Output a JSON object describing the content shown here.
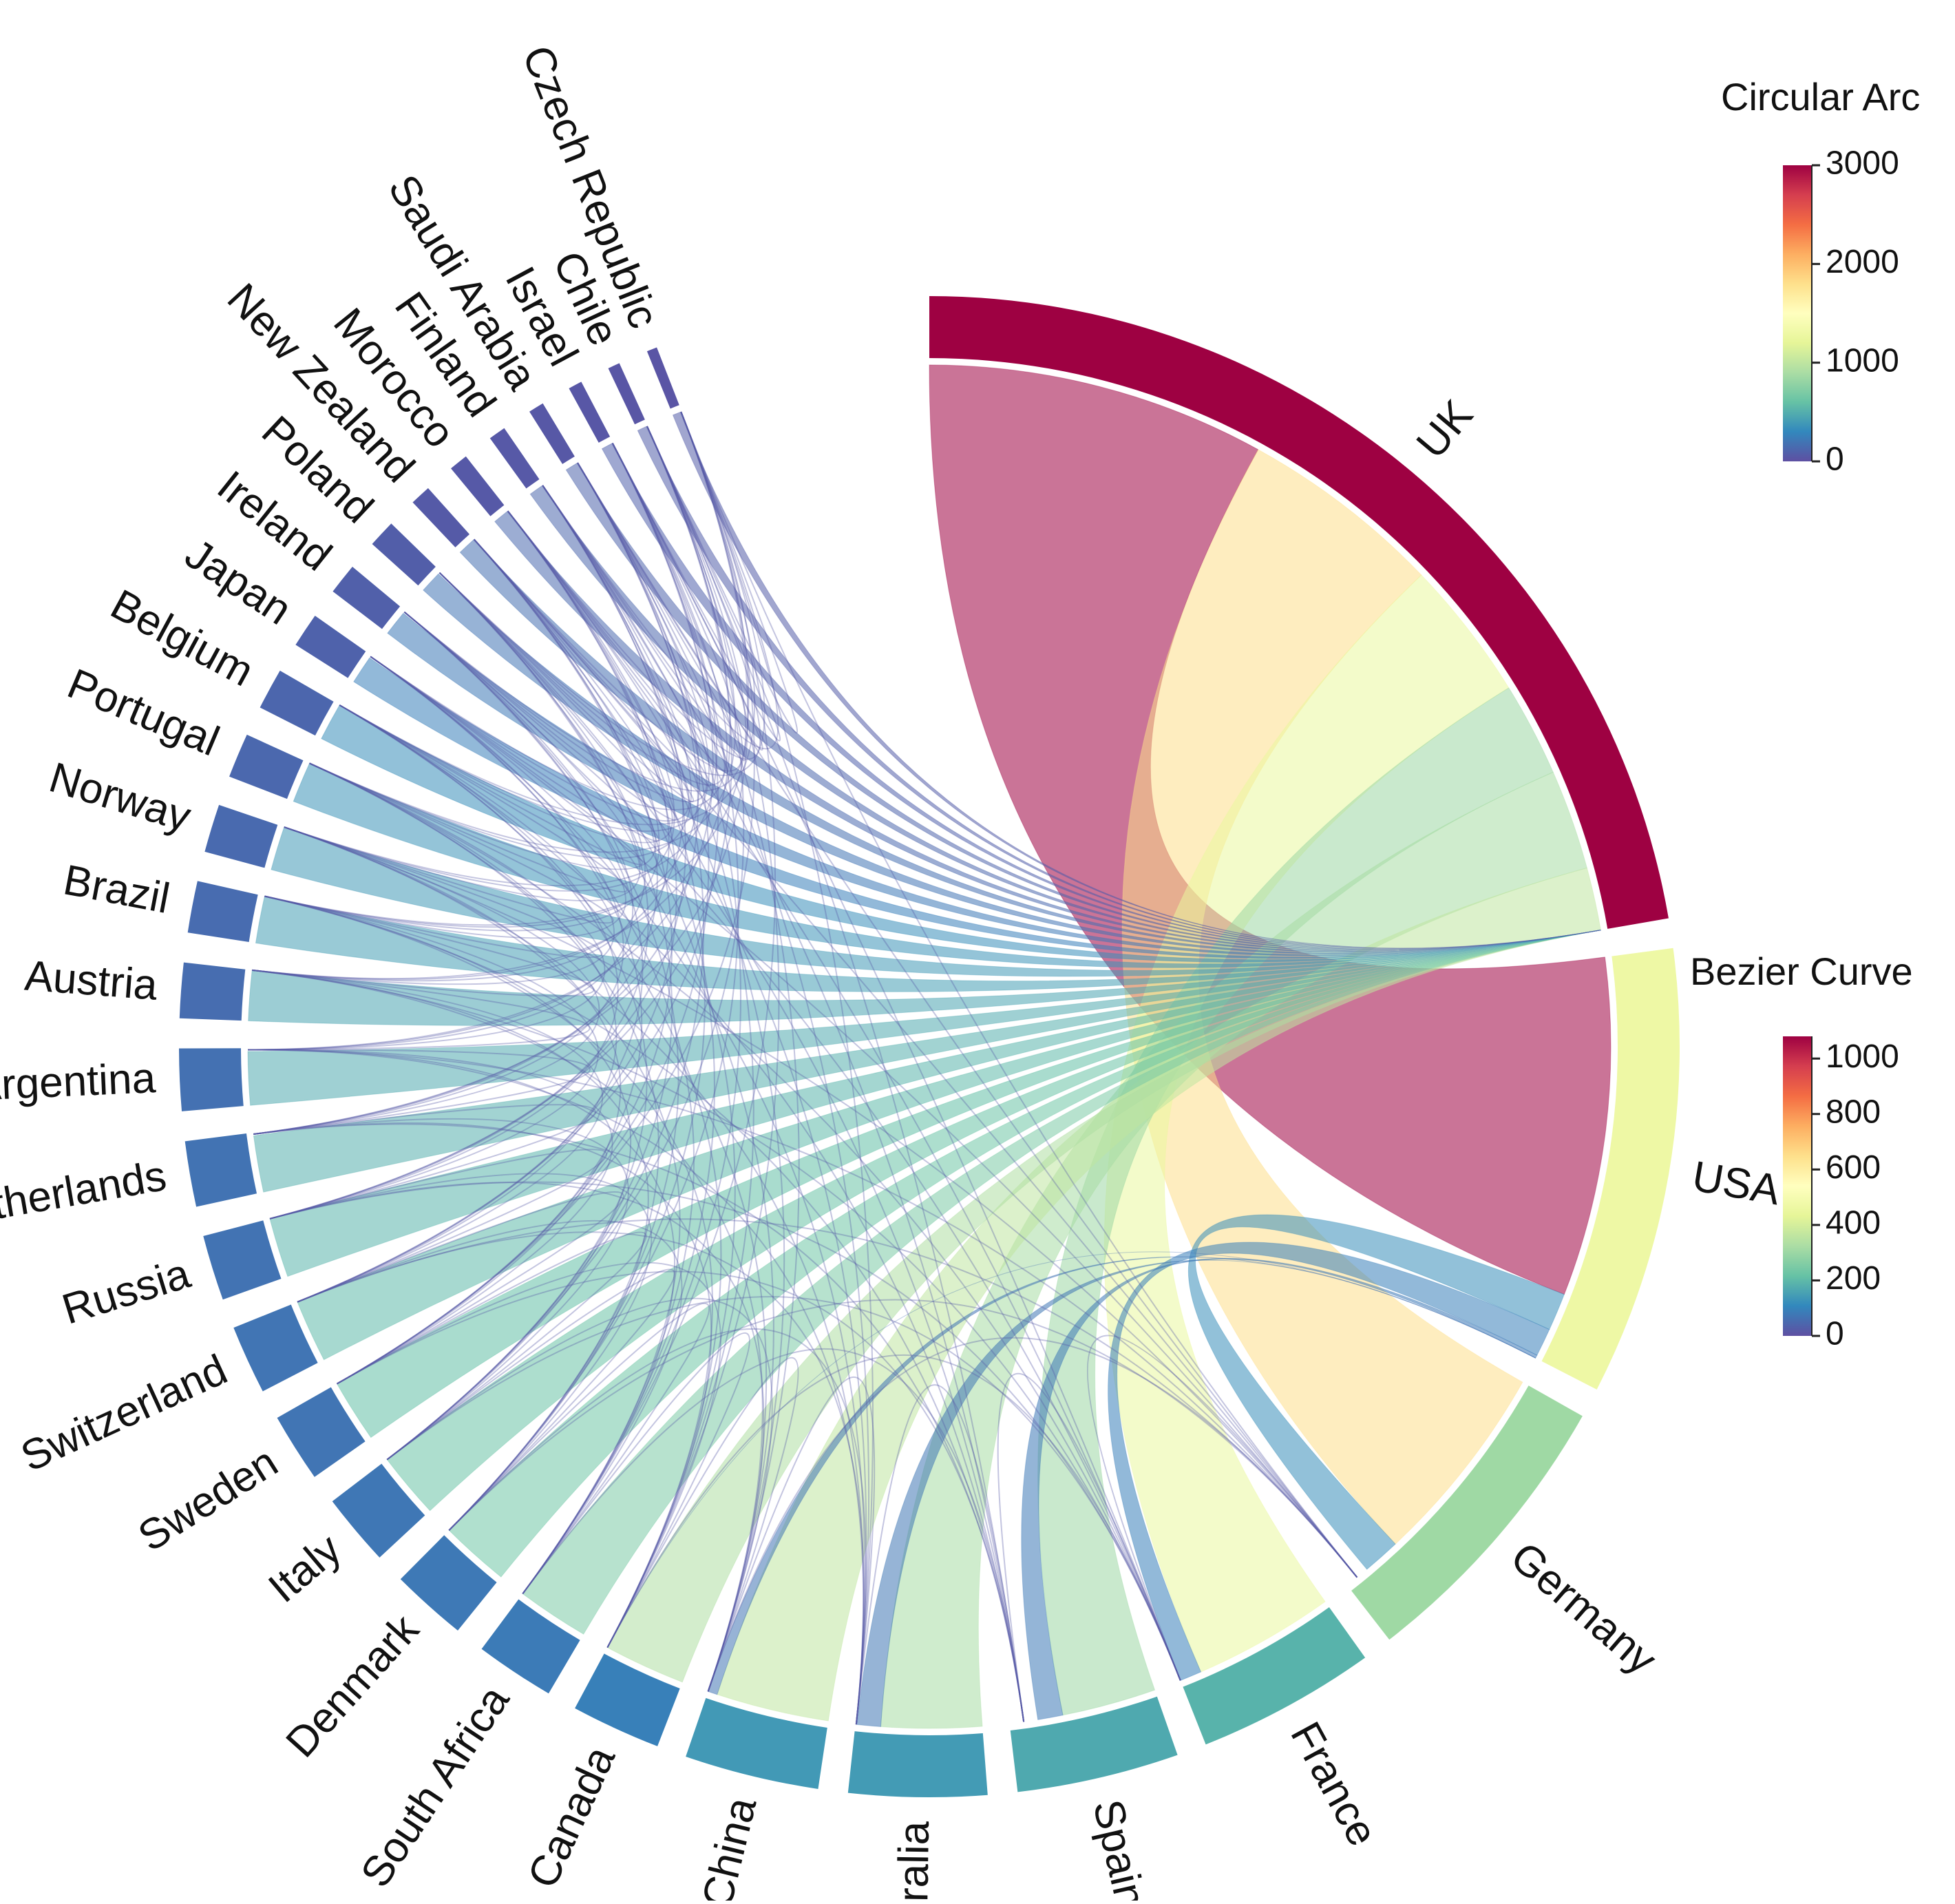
{
  "chart_data": {
    "type": "chord",
    "countries": [
      {
        "name": "UK",
        "total": 3000
      },
      {
        "name": "USA",
        "total": 1300
      },
      {
        "name": "Germany",
        "total": 850
      },
      {
        "name": "France",
        "total": 520
      },
      {
        "name": "Spain",
        "total": 470
      },
      {
        "name": "Australia",
        "total": 400
      },
      {
        "name": "China",
        "total": 390
      },
      {
        "name": "Canada",
        "total": 260
      },
      {
        "name": "South Africa",
        "total": 230
      },
      {
        "name": "Denmark",
        "total": 220
      },
      {
        "name": "Italy",
        "total": 210
      },
      {
        "name": "Sweden",
        "total": 200
      },
      {
        "name": "Switzerland",
        "total": 200
      },
      {
        "name": "Russia",
        "total": 190
      },
      {
        "name": "Netherlands",
        "total": 190
      },
      {
        "name": "Argentina",
        "total": 180
      },
      {
        "name": "Austria",
        "total": 160
      },
      {
        "name": "Brazil",
        "total": 150
      },
      {
        "name": "Norway",
        "total": 140
      },
      {
        "name": "Portugal",
        "total": 130
      },
      {
        "name": "Belgium",
        "total": 120
      },
      {
        "name": "Japan",
        "total": 100
      },
      {
        "name": "Ireland",
        "total": 90
      },
      {
        "name": "Poland",
        "total": 80
      },
      {
        "name": "New Zealand",
        "total": 60
      },
      {
        "name": "Morocco",
        "total": 55
      },
      {
        "name": "Finland",
        "total": 50
      },
      {
        "name": "Saudi Arabia",
        "total": 45
      },
      {
        "name": "Israel",
        "total": 40
      },
      {
        "name": "Chile",
        "total": 35
      },
      {
        "name": "Czech Republic",
        "total": 30
      }
    ],
    "uk_links": [
      {
        "target": "USA",
        "value": 1080
      },
      {
        "target": "Germany",
        "value": 650
      },
      {
        "target": "France",
        "value": 450
      },
      {
        "target": "Spain",
        "value": 300
      },
      {
        "target": "Australia",
        "value": 320
      },
      {
        "target": "China",
        "value": 360
      },
      {
        "target": "Canada",
        "value": 330
      },
      {
        "target": "South Africa",
        "value": 250
      },
      {
        "target": "Denmark",
        "value": 230
      },
      {
        "target": "Italy",
        "value": 220
      },
      {
        "target": "Sweden",
        "value": 210
      },
      {
        "target": "Switzerland",
        "value": 200
      },
      {
        "target": "Russia",
        "value": 190
      },
      {
        "target": "Netherlands",
        "value": 180
      },
      {
        "target": "Argentina",
        "value": 170
      },
      {
        "target": "Austria",
        "value": 160
      },
      {
        "target": "Brazil",
        "value": 150
      },
      {
        "target": "Norway",
        "value": 140
      },
      {
        "target": "Portugal",
        "value": 130
      },
      {
        "target": "Belgium",
        "value": 120
      },
      {
        "target": "Japan",
        "value": 90
      },
      {
        "target": "Ireland",
        "value": 80
      },
      {
        "target": "Poland",
        "value": 70
      },
      {
        "target": "New Zealand",
        "value": 60
      },
      {
        "target": "Morocco",
        "value": 50
      },
      {
        "target": "Finland",
        "value": 45
      },
      {
        "target": "Saudi Arabia",
        "value": 40
      },
      {
        "target": "Israel",
        "value": 35
      },
      {
        "target": "Chile",
        "value": 30
      },
      {
        "target": "Czech Republic",
        "value": 25
      }
    ],
    "usa_links": [
      {
        "target": "Germany",
        "value": 120
      },
      {
        "target": "France",
        "value": 90
      },
      {
        "target": "Spain",
        "value": 80
      },
      {
        "target": "Australia",
        "value": 75
      },
      {
        "target": "China",
        "value": 70
      },
      {
        "target": "Canada",
        "value": 60
      }
    ],
    "colorbars": [
      {
        "title": "Circular Arc",
        "ticks": [
          "0",
          "1000",
          "2000",
          "3000"
        ],
        "range": [
          0,
          3000
        ]
      },
      {
        "title": "Bezier Curve",
        "ticks": [
          "0",
          "200",
          "400",
          "600",
          "800",
          "1000"
        ],
        "range": [
          0,
          1080
        ]
      }
    ],
    "colormap": [
      "#5e4fa2",
      "#3288bd",
      "#66c2a5",
      "#abdda4",
      "#e6f598",
      "#ffffbf",
      "#fee08b",
      "#fdae61",
      "#f46d43",
      "#d53e4f",
      "#9e0142"
    ]
  }
}
